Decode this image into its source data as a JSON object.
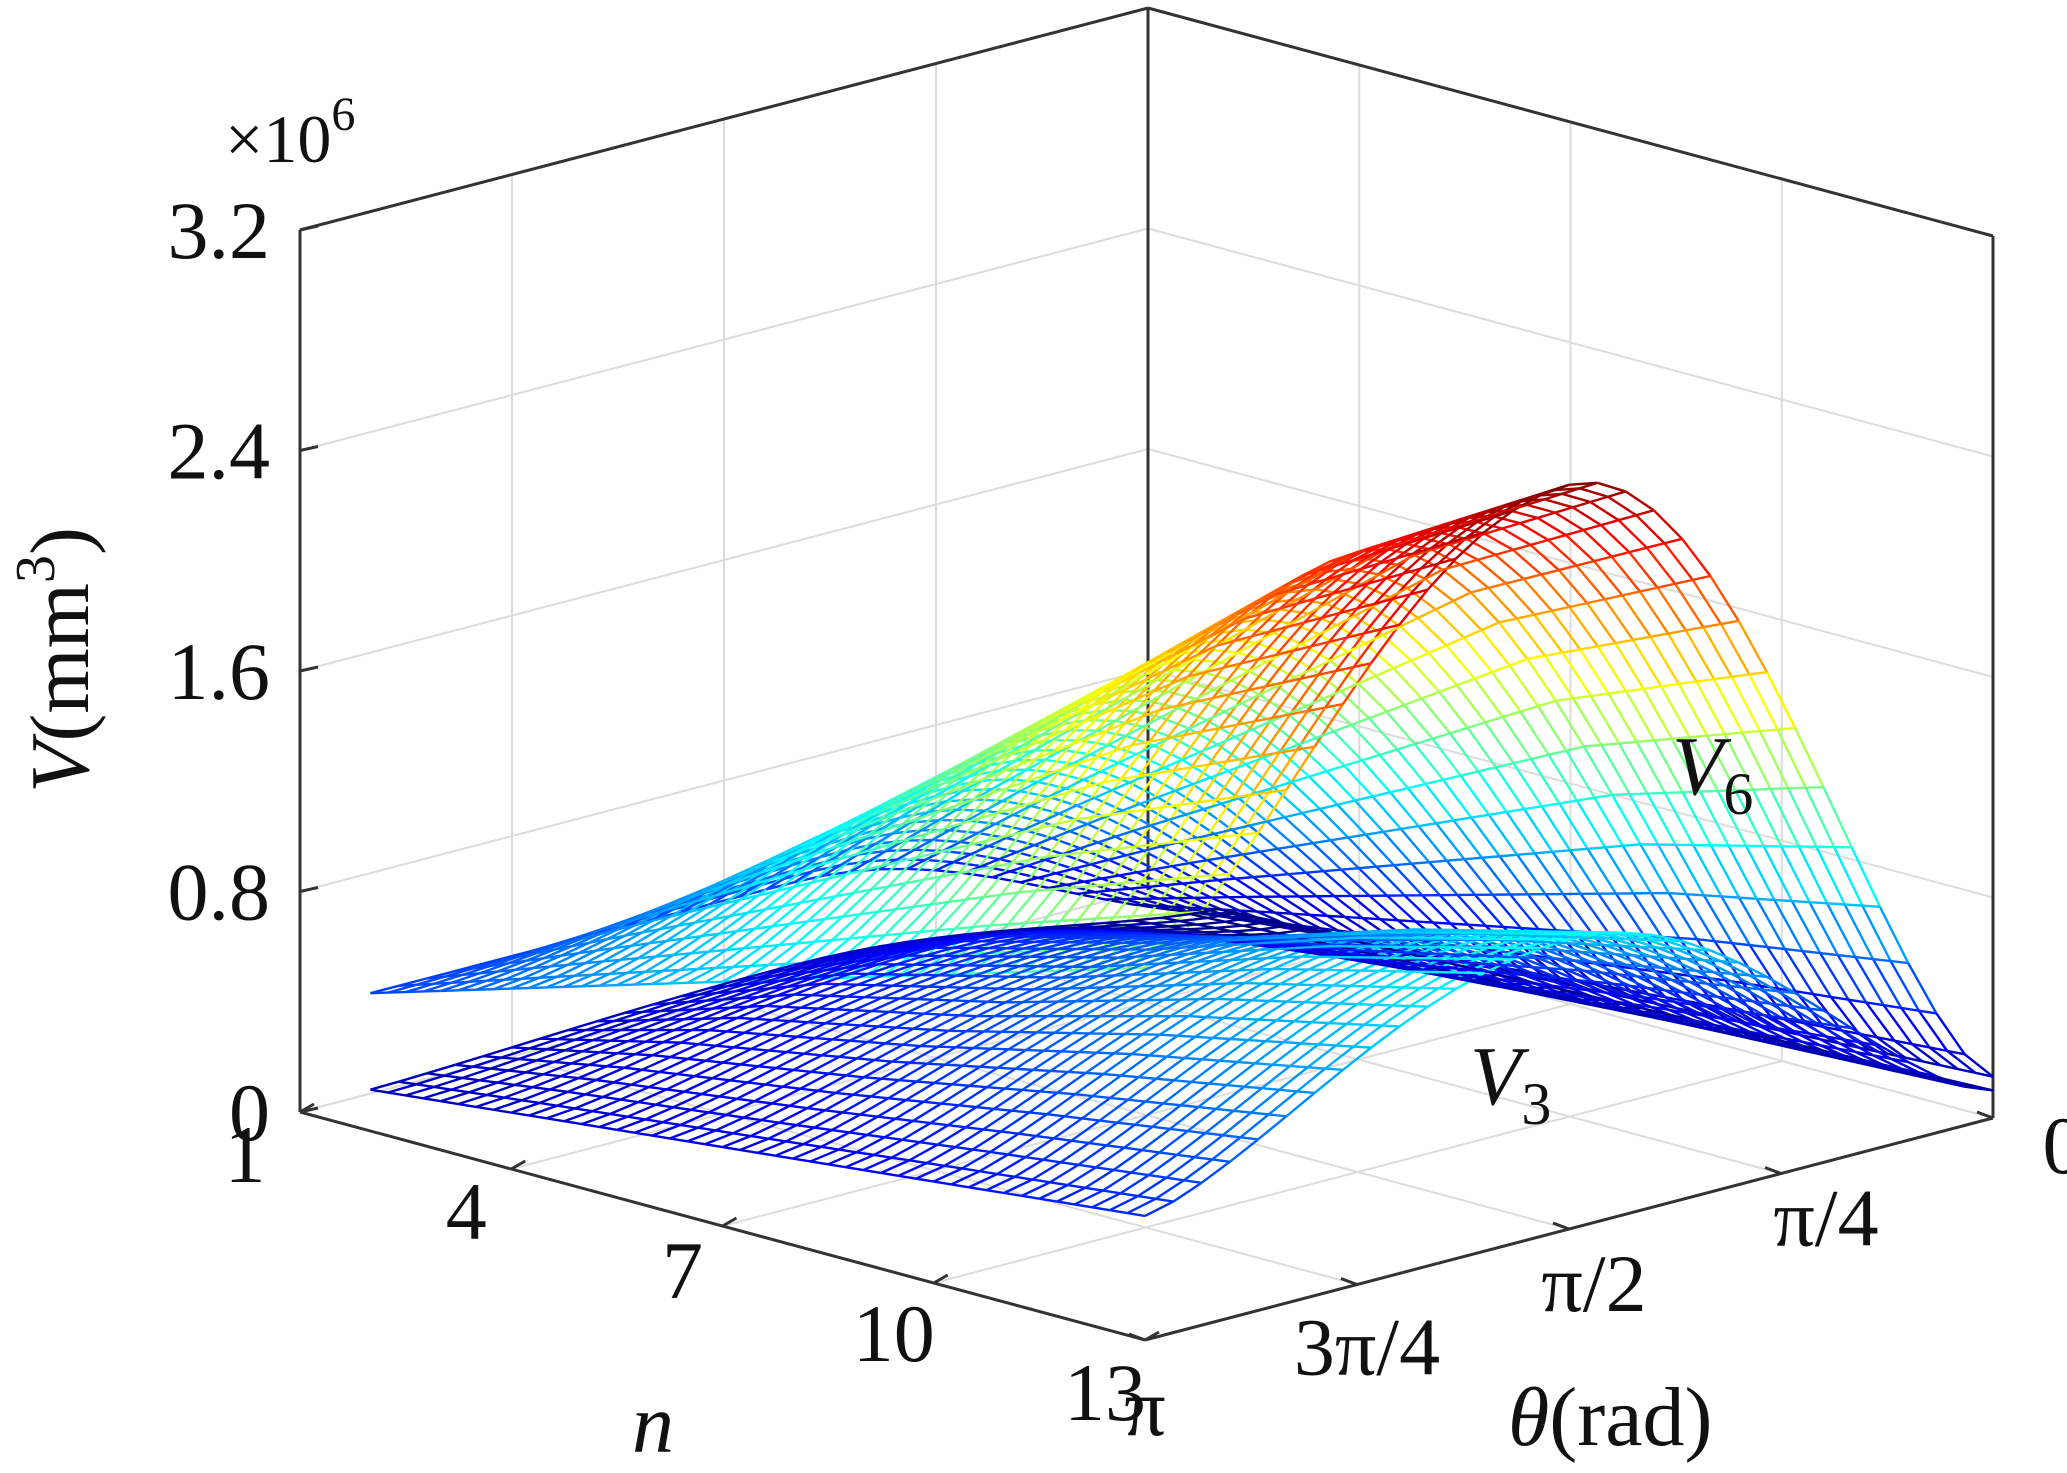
{
  "chart_data": {
    "type": "surface",
    "title": "",
    "axes": {
      "x": {
        "label": "n",
        "ticks": [
          1,
          4,
          7,
          10,
          13
        ],
        "tick_labels": [
          "1",
          "4",
          "7",
          "10",
          "13"
        ],
        "range": [
          1,
          13
        ]
      },
      "y": {
        "label": "θ(rad)",
        "label_symbol": "θ",
        "label_unit": "(rad)",
        "ticks": [
          0,
          0.7854,
          1.5708,
          2.3562,
          3.1416
        ],
        "tick_labels": [
          "0",
          "π/4",
          "π/2",
          "3π/4",
          "π"
        ],
        "range": [
          0,
          3.1416
        ]
      },
      "z": {
        "label": "V(mm³)",
        "label_symbol": "V",
        "label_unit_open": "(mm",
        "label_unit_sup": "3",
        "label_unit_close": ")",
        "ticks": [
          0,
          0.8,
          1.6,
          2.4,
          3.2
        ],
        "tick_labels": [
          "0",
          "0.8",
          "1.6",
          "2.4",
          "3.2"
        ],
        "range": [
          0,
          3.2
        ],
        "multiplier": "×10⁶",
        "multiplier_base": "×10",
        "multiplier_exp": "6"
      }
    },
    "grid": true,
    "colormap": "jet",
    "series": [
      {
        "name": "V6",
        "label_base": "V",
        "label_sub": "6",
        "peak_theta": 1.5708,
        "values_at_peak_theta": {
          "n": [
            2,
            4,
            7,
            10,
            13
          ],
          "V": [
            0.5,
            0.95,
            1.6,
            2.25,
            2.7
          ]
        },
        "values_at_theta_edges": {
          "theta": [
            0,
            3.1416
          ],
          "V_at_n13": [
            0.15,
            1.35
          ],
          "V_at_n2": [
            0.0,
            0.5
          ]
        }
      },
      {
        "name": "V3",
        "label_base": "V",
        "label_sub": "3",
        "peak_theta": 1.5708,
        "values_at_peak_theta": {
          "n": [
            2,
            4,
            7,
            10,
            13
          ],
          "V": [
            0.2,
            0.4,
            0.6,
            0.85,
            1.05
          ]
        },
        "values_at_theta_edges": {
          "theta": [
            0,
            3.1416
          ],
          "V_at_n13": [
            0.1,
            0.45
          ],
          "V_at_n2": [
            0.0,
            0.15
          ]
        }
      }
    ]
  }
}
